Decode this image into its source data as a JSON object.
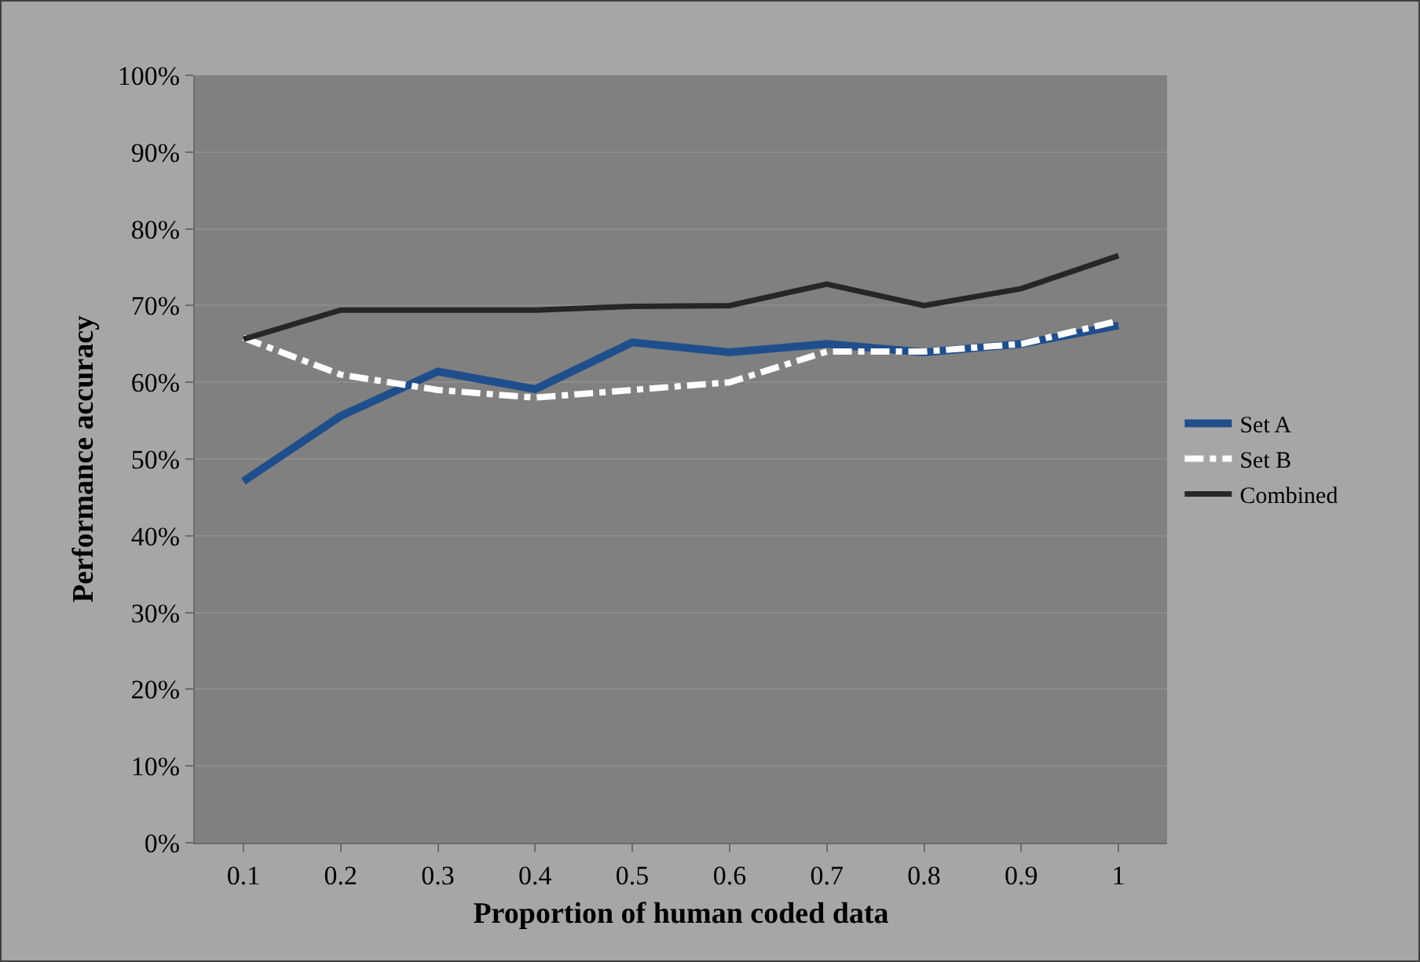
{
  "chart_data": {
    "type": "line",
    "xlabel": "Proportion of human coded data",
    "ylabel": "Performance accuracy",
    "categories": [
      "0.1",
      "0.2",
      "0.3",
      "0.4",
      "0.5",
      "0.6",
      "0.7",
      "0.8",
      "0.9",
      "1"
    ],
    "series": [
      {
        "name": "Set A",
        "color": "#1f4e8c",
        "line_style": "solid",
        "values": [
          47.1,
          55.6,
          61.4,
          59.1,
          65.2,
          63.9,
          65.0,
          63.9,
          65.0,
          67.4
        ]
      },
      {
        "name": "Set B",
        "color": "#ffffff",
        "line_style": "dashdot",
        "values": [
          65.8,
          61.0,
          59.0,
          58.0,
          59.0,
          60.0,
          64.0,
          64.0,
          65.0,
          68.0
        ]
      },
      {
        "name": "Combined",
        "color": "#262626",
        "line_style": "solid",
        "values": [
          65.6,
          69.4,
          69.4,
          69.4,
          69.9,
          70.0,
          72.8,
          70.0,
          72.2,
          76.5
        ]
      }
    ],
    "ylim": [
      0,
      100
    ],
    "yticks": [
      {
        "value": 0,
        "label": "0%"
      },
      {
        "value": 10,
        "label": "10%"
      },
      {
        "value": 20,
        "label": "20%"
      },
      {
        "value": 30,
        "label": "30%"
      },
      {
        "value": 40,
        "label": "40%"
      },
      {
        "value": 50,
        "label": "50%"
      },
      {
        "value": 60,
        "label": "60%"
      },
      {
        "value": 70,
        "label": "70%"
      },
      {
        "value": 80,
        "label": "80%"
      },
      {
        "value": 90,
        "label": "90%"
      },
      {
        "value": 100,
        "label": "100%"
      }
    ],
    "grid": "y",
    "legend": "right",
    "marker": "none"
  }
}
